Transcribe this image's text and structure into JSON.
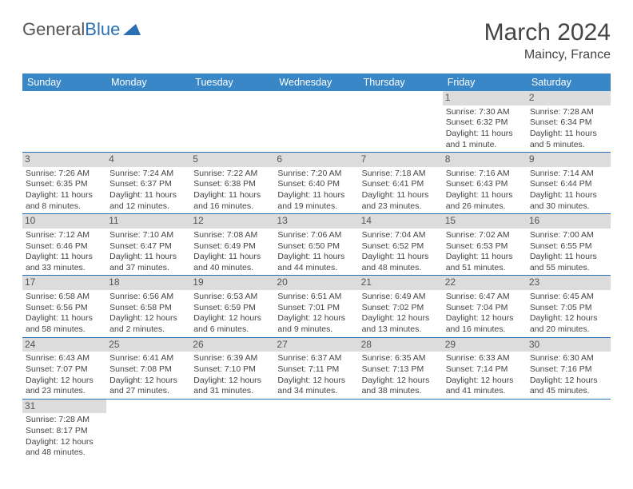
{
  "logo": {
    "part1": "General",
    "part2": "Blue"
  },
  "title": "March 2024",
  "location": "Maincy, France",
  "headers": [
    "Sunday",
    "Monday",
    "Tuesday",
    "Wednesday",
    "Thursday",
    "Friday",
    "Saturday"
  ],
  "colors": {
    "header_bg": "#3a87c8",
    "header_text": "#ffffff",
    "daynum_bg": "#dcdcdc",
    "cell_border": "#2b6fb5",
    "text": "#444444",
    "logo_gray": "#555555",
    "logo_blue": "#2b6fb5",
    "background": "#ffffff"
  },
  "typography": {
    "title_fontsize": 30,
    "location_fontsize": 16,
    "header_fontsize": 12.5,
    "daynum_fontsize": 12,
    "body_fontsize": 10.5
  },
  "layout": {
    "columns": 7,
    "body_rows": 6,
    "start_day_index": 5
  },
  "days": [
    {
      "n": "1",
      "sunrise": "7:30 AM",
      "sunset": "6:32 PM",
      "daylight": "11 hours and 1 minute."
    },
    {
      "n": "2",
      "sunrise": "7:28 AM",
      "sunset": "6:34 PM",
      "daylight": "11 hours and 5 minutes."
    },
    {
      "n": "3",
      "sunrise": "7:26 AM",
      "sunset": "6:35 PM",
      "daylight": "11 hours and 8 minutes."
    },
    {
      "n": "4",
      "sunrise": "7:24 AM",
      "sunset": "6:37 PM",
      "daylight": "11 hours and 12 minutes."
    },
    {
      "n": "5",
      "sunrise": "7:22 AM",
      "sunset": "6:38 PM",
      "daylight": "11 hours and 16 minutes."
    },
    {
      "n": "6",
      "sunrise": "7:20 AM",
      "sunset": "6:40 PM",
      "daylight": "11 hours and 19 minutes."
    },
    {
      "n": "7",
      "sunrise": "7:18 AM",
      "sunset": "6:41 PM",
      "daylight": "11 hours and 23 minutes."
    },
    {
      "n": "8",
      "sunrise": "7:16 AM",
      "sunset": "6:43 PM",
      "daylight": "11 hours and 26 minutes."
    },
    {
      "n": "9",
      "sunrise": "7:14 AM",
      "sunset": "6:44 PM",
      "daylight": "11 hours and 30 minutes."
    },
    {
      "n": "10",
      "sunrise": "7:12 AM",
      "sunset": "6:46 PM",
      "daylight": "11 hours and 33 minutes."
    },
    {
      "n": "11",
      "sunrise": "7:10 AM",
      "sunset": "6:47 PM",
      "daylight": "11 hours and 37 minutes."
    },
    {
      "n": "12",
      "sunrise": "7:08 AM",
      "sunset": "6:49 PM",
      "daylight": "11 hours and 40 minutes."
    },
    {
      "n": "13",
      "sunrise": "7:06 AM",
      "sunset": "6:50 PM",
      "daylight": "11 hours and 44 minutes."
    },
    {
      "n": "14",
      "sunrise": "7:04 AM",
      "sunset": "6:52 PM",
      "daylight": "11 hours and 48 minutes."
    },
    {
      "n": "15",
      "sunrise": "7:02 AM",
      "sunset": "6:53 PM",
      "daylight": "11 hours and 51 minutes."
    },
    {
      "n": "16",
      "sunrise": "7:00 AM",
      "sunset": "6:55 PM",
      "daylight": "11 hours and 55 minutes."
    },
    {
      "n": "17",
      "sunrise": "6:58 AM",
      "sunset": "6:56 PM",
      "daylight": "11 hours and 58 minutes."
    },
    {
      "n": "18",
      "sunrise": "6:56 AM",
      "sunset": "6:58 PM",
      "daylight": "12 hours and 2 minutes."
    },
    {
      "n": "19",
      "sunrise": "6:53 AM",
      "sunset": "6:59 PM",
      "daylight": "12 hours and 6 minutes."
    },
    {
      "n": "20",
      "sunrise": "6:51 AM",
      "sunset": "7:01 PM",
      "daylight": "12 hours and 9 minutes."
    },
    {
      "n": "21",
      "sunrise": "6:49 AM",
      "sunset": "7:02 PM",
      "daylight": "12 hours and 13 minutes."
    },
    {
      "n": "22",
      "sunrise": "6:47 AM",
      "sunset": "7:04 PM",
      "daylight": "12 hours and 16 minutes."
    },
    {
      "n": "23",
      "sunrise": "6:45 AM",
      "sunset": "7:05 PM",
      "daylight": "12 hours and 20 minutes."
    },
    {
      "n": "24",
      "sunrise": "6:43 AM",
      "sunset": "7:07 PM",
      "daylight": "12 hours and 23 minutes."
    },
    {
      "n": "25",
      "sunrise": "6:41 AM",
      "sunset": "7:08 PM",
      "daylight": "12 hours and 27 minutes."
    },
    {
      "n": "26",
      "sunrise": "6:39 AM",
      "sunset": "7:10 PM",
      "daylight": "12 hours and 31 minutes."
    },
    {
      "n": "27",
      "sunrise": "6:37 AM",
      "sunset": "7:11 PM",
      "daylight": "12 hours and 34 minutes."
    },
    {
      "n": "28",
      "sunrise": "6:35 AM",
      "sunset": "7:13 PM",
      "daylight": "12 hours and 38 minutes."
    },
    {
      "n": "29",
      "sunrise": "6:33 AM",
      "sunset": "7:14 PM",
      "daylight": "12 hours and 41 minutes."
    },
    {
      "n": "30",
      "sunrise": "6:30 AM",
      "sunset": "7:16 PM",
      "daylight": "12 hours and 45 minutes."
    },
    {
      "n": "31",
      "sunrise": "7:28 AM",
      "sunset": "8:17 PM",
      "daylight": "12 hours and 48 minutes."
    }
  ],
  "labels": {
    "sunrise": "Sunrise:",
    "sunset": "Sunset:",
    "daylight": "Daylight:"
  }
}
